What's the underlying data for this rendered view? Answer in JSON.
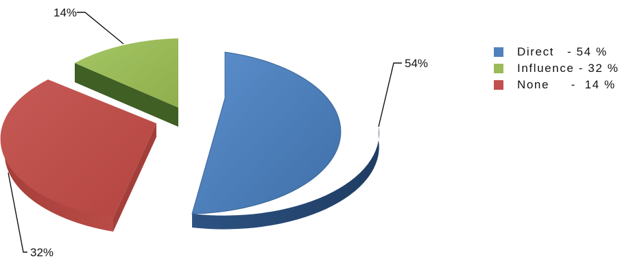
{
  "chart_data": {
    "type": "pie",
    "style": "3d-exploded",
    "slices": [
      {
        "key": "direct",
        "label": "Direct",
        "value": 54,
        "color": "#4F81BD",
        "data_label": "54%",
        "legend_text": "Direct   - 54 %"
      },
      {
        "key": "influence",
        "label": "Influence",
        "value": 32,
        "color": "#9BBB59",
        "data_label": "32%",
        "legend_text": "Influence - 32 %"
      },
      {
        "key": "none",
        "label": "None",
        "value": 14,
        "color": "#C0504D",
        "data_label": "14%",
        "legend_text": "None     -  14 %"
      }
    ],
    "legend_position": "right",
    "title": ""
  }
}
